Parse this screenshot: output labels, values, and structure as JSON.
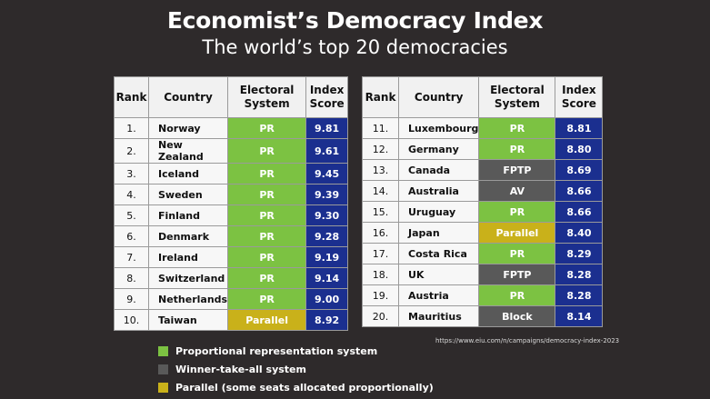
{
  "title": "Economist’s Democracy Index",
  "subtitle": "The world’s top 20 democracies",
  "columns": {
    "rank": "Rank",
    "country": "Country",
    "system": [
      "Electoral",
      "System"
    ],
    "score": [
      "Index",
      "Score"
    ]
  },
  "colors": {
    "PR": "#7cc242",
    "FPTP": "#595959",
    "AV": "#595959",
    "Block": "#595959",
    "Parallel": "#c9b11a",
    "score_bg": "#1b2f8f",
    "background": "#2e2a2b"
  },
  "rows_left": [
    {
      "rank": "1.",
      "country": "Norway",
      "system": "PR",
      "score": "9.81"
    },
    {
      "rank": "2.",
      "country": "New Zealand",
      "system": "PR",
      "score": "9.61"
    },
    {
      "rank": "3.",
      "country": "Iceland",
      "system": "PR",
      "score": "9.45"
    },
    {
      "rank": "4.",
      "country": "Sweden",
      "system": "PR",
      "score": "9.39"
    },
    {
      "rank": "5.",
      "country": "Finland",
      "system": "PR",
      "score": "9.30"
    },
    {
      "rank": "6.",
      "country": "Denmark",
      "system": "PR",
      "score": "9.28"
    },
    {
      "rank": "7.",
      "country": "Ireland",
      "system": "PR",
      "score": "9.19"
    },
    {
      "rank": "8.",
      "country": "Switzerland",
      "system": "PR",
      "score": "9.14"
    },
    {
      "rank": "9.",
      "country": "Netherlands",
      "system": "PR",
      "score": "9.00"
    },
    {
      "rank": "10.",
      "country": "Taiwan",
      "system": "Parallel",
      "score": "8.92"
    }
  ],
  "rows_right": [
    {
      "rank": "11.",
      "country": "Luxembourg",
      "system": "PR",
      "score": "8.81"
    },
    {
      "rank": "12.",
      "country": "Germany",
      "system": "PR",
      "score": "8.80"
    },
    {
      "rank": "13.",
      "country": "Canada",
      "system": "FPTP",
      "score": "8.69"
    },
    {
      "rank": "14.",
      "country": "Australia",
      "system": "AV",
      "score": "8.66"
    },
    {
      "rank": "15.",
      "country": "Uruguay",
      "system": "PR",
      "score": "8.66"
    },
    {
      "rank": "16.",
      "country": "Japan",
      "system": "Parallel",
      "score": "8.40"
    },
    {
      "rank": "17.",
      "country": "Costa Rica",
      "system": "PR",
      "score": "8.29"
    },
    {
      "rank": "18.",
      "country": "UK",
      "system": "FPTP",
      "score": "8.28"
    },
    {
      "rank": "19.",
      "country": "Austria",
      "system": "PR",
      "score": "8.28"
    },
    {
      "rank": "20.",
      "country": "Mauritius",
      "system": "Block",
      "score": "8.14"
    }
  ],
  "source": "https://www.eiu.com/n/campaigns/democracy-index-2023",
  "legend": [
    {
      "label": "Proportional representation system",
      "color": "#7cc242"
    },
    {
      "label": "Winner-take-all system",
      "color": "#595959"
    },
    {
      "label": "Parallel (some seats allocated proportionally)",
      "color": "#c9b11a"
    }
  ]
}
